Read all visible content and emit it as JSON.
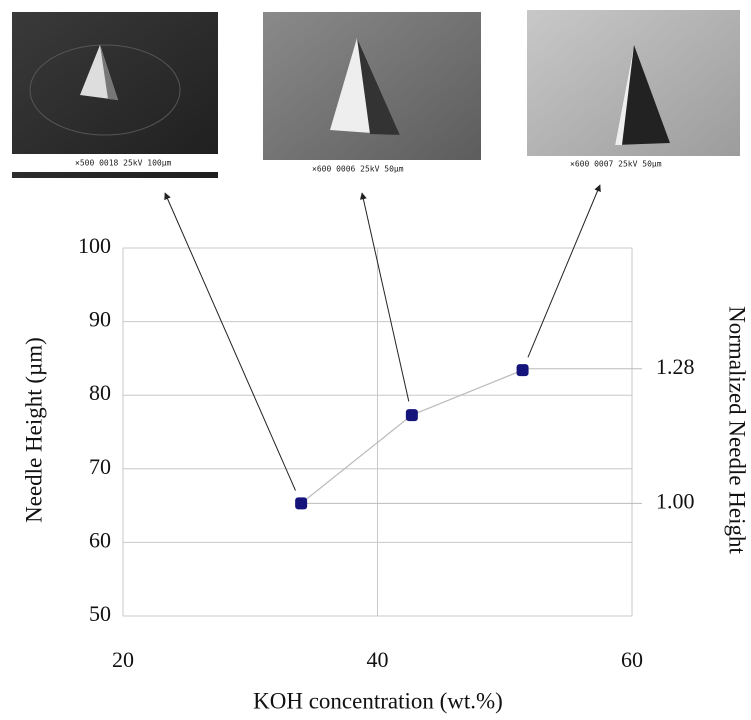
{
  "chart_data": {
    "type": "line",
    "x_label": "KOH concentration (wt.%)",
    "y_label": "Needle Height (µm)",
    "y2_label": "Normalized Needle Height",
    "x": [
      34,
      42.7,
      51.4
    ],
    "series": [
      {
        "color": "#14147a",
        "values": [
          65.3,
          77.3,
          83.4
        ]
      }
    ],
    "xlim": [
      20,
      60
    ],
    "xticks": [
      20,
      40,
      60
    ],
    "ylim": [
      50,
      100
    ],
    "yticks": [
      50,
      60,
      70,
      80,
      90,
      100
    ],
    "y2lim": [
      0.766,
      1.531
    ],
    "y2ticks": [
      {
        "value": 1.0,
        "label": "1.00"
      },
      {
        "value": 1.28,
        "label": "1.28"
      }
    ],
    "grid": true
  },
  "insets": [
    {
      "caption": "×500  0018  25kV  100μm"
    },
    {
      "caption": "×600  0006  25kV  50μm"
    },
    {
      "caption": "×600  0007  25kV  50μm"
    }
  ]
}
